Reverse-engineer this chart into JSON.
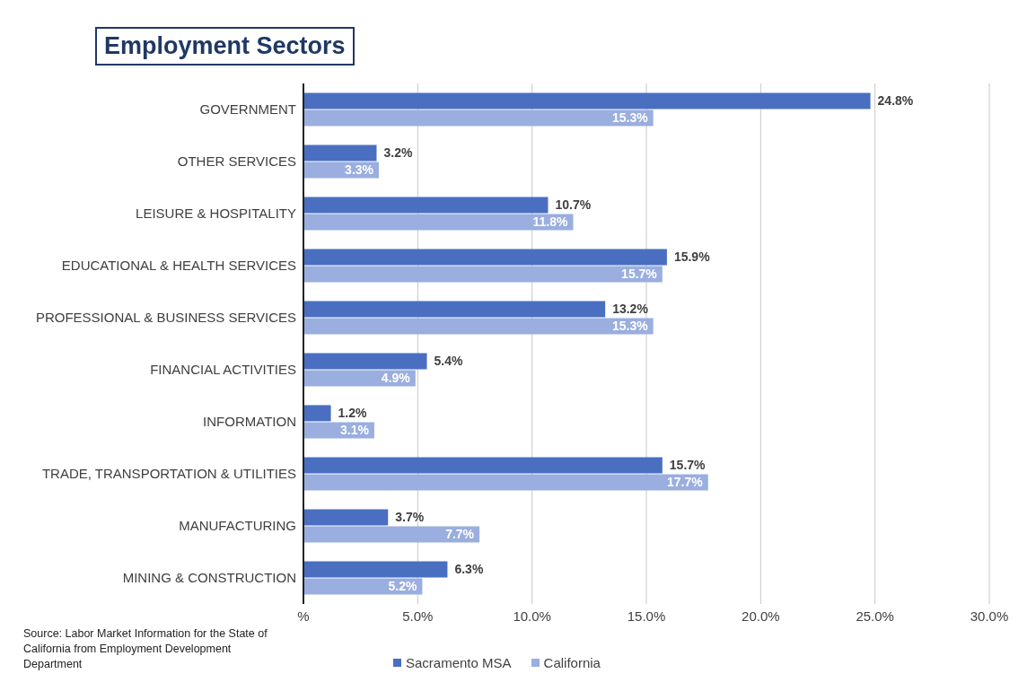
{
  "chart_data": {
    "type": "bar",
    "orientation": "horizontal",
    "title": "Employment Sectors",
    "categories": [
      "GOVERNMENT",
      "OTHER SERVICES",
      "LEISURE & HOSPITALITY",
      "EDUCATIONAL & HEALTH SERVICES",
      "PROFESSIONAL & BUSINESS SERVICES",
      "FINANCIAL ACTIVITIES",
      "INFORMATION",
      "TRADE, TRANSPORTATION & UTILITIES",
      "MANUFACTURING",
      "MINING & CONSTRUCTION"
    ],
    "series": [
      {
        "name": "Sacramento MSA",
        "color": "#4a6fc1",
        "values": [
          24.8,
          3.2,
          10.7,
          15.9,
          13.2,
          5.4,
          1.2,
          15.7,
          3.7,
          6.3
        ],
        "value_labels": [
          "24.8%",
          "3.2%",
          "10.7%",
          "15.9%",
          "13.2%",
          "5.4%",
          "1.2%",
          "15.7%",
          "3.7%",
          "6.3%"
        ]
      },
      {
        "name": "California",
        "color": "#9aaedf",
        "values": [
          15.3,
          3.3,
          11.8,
          15.7,
          15.3,
          4.9,
          3.1,
          17.7,
          7.7,
          5.2
        ],
        "value_labels": [
          "15.3%",
          "3.3%",
          "11.8%",
          "15.7%",
          "15.3%",
          "4.9%",
          "3.1%",
          "17.7%",
          "7.7%",
          "5.2%"
        ]
      }
    ],
    "xlim": [
      0,
      30
    ],
    "xticks": [
      {
        "value": 0,
        "label": "%"
      },
      {
        "value": 5,
        "label": "5.0%"
      },
      {
        "value": 10,
        "label": "10.0%"
      },
      {
        "value": 15,
        "label": "15.0%"
      },
      {
        "value": 20,
        "label": "20.0%"
      },
      {
        "value": 25,
        "label": "25.0%"
      },
      {
        "value": 30,
        "label": "30.0%"
      }
    ],
    "grid": "x",
    "legend": "bottom",
    "annotations": [
      "Source: Labor Market Information for the State of California from Employment Development Department"
    ]
  }
}
